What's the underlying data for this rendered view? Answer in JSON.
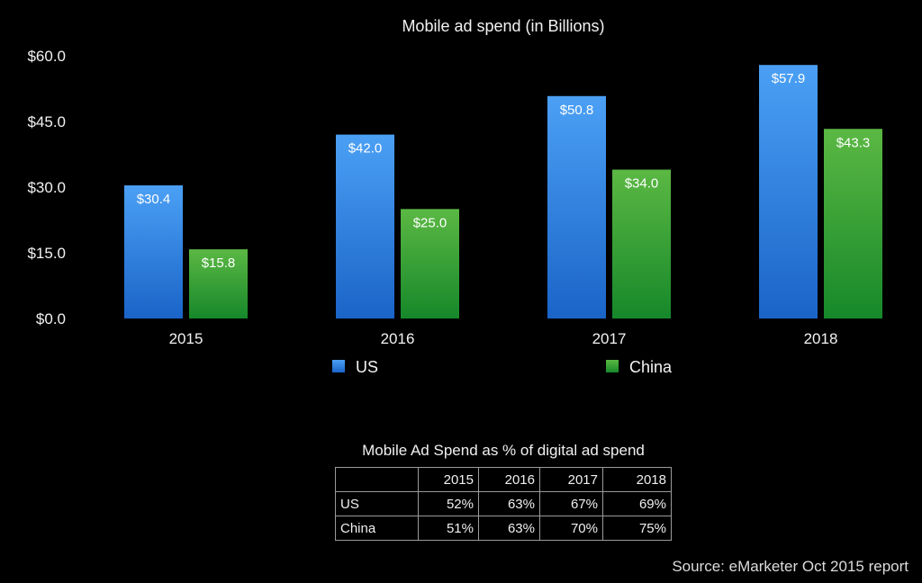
{
  "chart_data": {
    "type": "bar",
    "title": "Mobile ad spend (in Billions)",
    "xlabel": "",
    "ylabel": "",
    "categories": [
      "2015",
      "2016",
      "2017",
      "2018"
    ],
    "series": [
      {
        "name": "US",
        "color": "#3d8fe8",
        "values": [
          30.4,
          42.0,
          50.8,
          57.9
        ],
        "labels": [
          "$30.4",
          "$42.0",
          "$50.8",
          "$57.9"
        ]
      },
      {
        "name": "China",
        "color": "#3fa83a",
        "values": [
          15.8,
          25.0,
          34.0,
          43.3
        ],
        "labels": [
          "$15.8",
          "$25.0",
          "$34.0",
          "$43.3"
        ]
      }
    ],
    "ylim": [
      0,
      60
    ],
    "yticks": [
      0,
      15,
      30,
      45,
      60
    ],
    "ytick_labels": [
      "$0.0",
      "$15.0",
      "$30.0",
      "$45.0",
      "$60.0"
    ],
    "grid": false,
    "legend": "bottom"
  },
  "table": {
    "title": "Mobile Ad Spend as % of digital ad spend",
    "headers": [
      "",
      "2015",
      "2016",
      "2017",
      "2018"
    ],
    "rows": [
      {
        "label": "US",
        "values": [
          "52%",
          "63%",
          "67%",
          "69%"
        ]
      },
      {
        "label": "China",
        "values": [
          "51%",
          "63%",
          "70%",
          "75%"
        ]
      }
    ]
  },
  "source": "Source: eMarketer Oct 2015 report"
}
